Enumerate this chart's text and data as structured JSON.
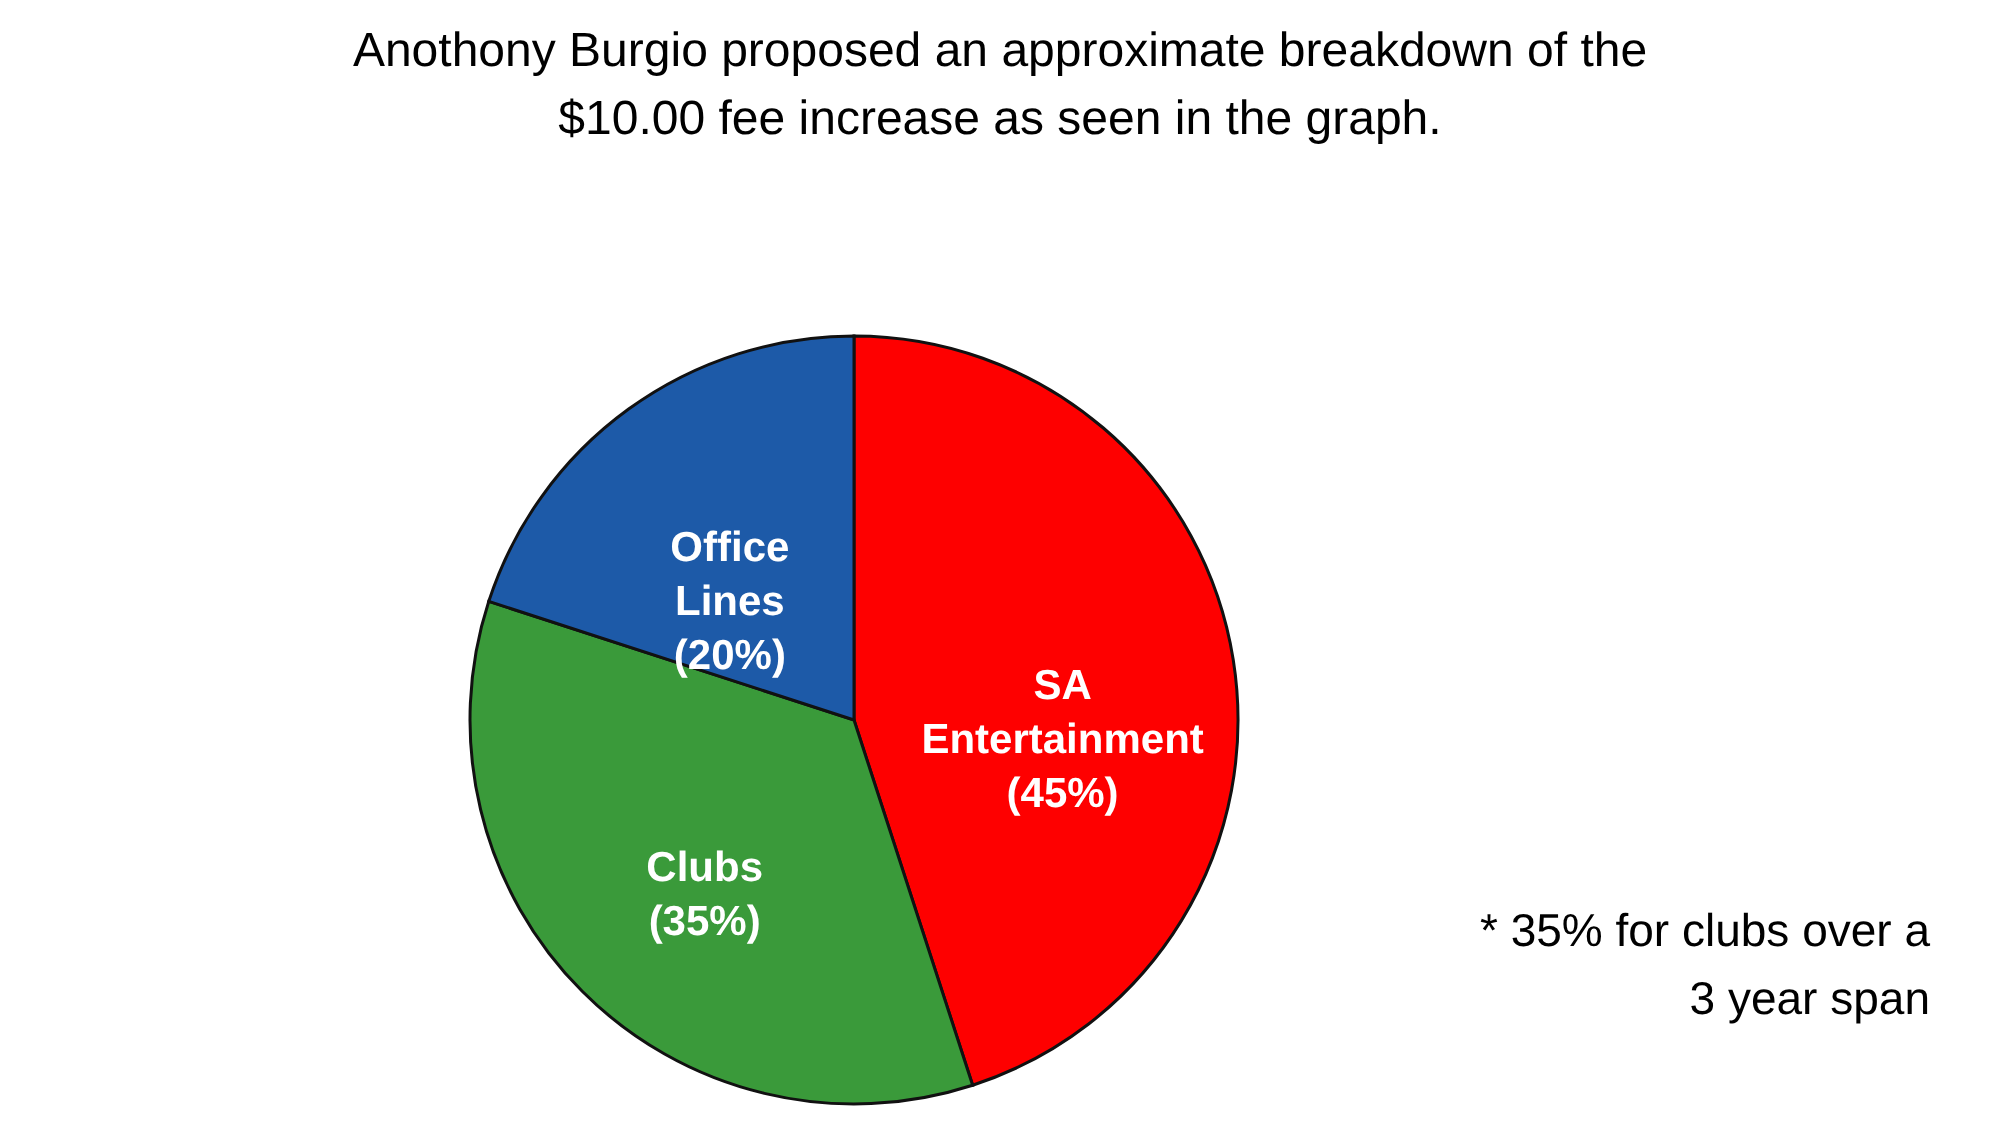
{
  "chart_data": {
    "type": "pie",
    "title": "Anothony Burgio proposed an approximate breakdown of the $10.00 fee increase as seen in the graph.",
    "categories": [
      "SA Entertainment",
      "Clubs",
      "Office Lines"
    ],
    "values": [
      45,
      35,
      20
    ],
    "value_labels": [
      "(45%)",
      "(35%)",
      "(20%)"
    ],
    "colors": [
      "#fe0000",
      "#3a9a3a",
      "#1d5aa8"
    ],
    "annotations": [
      "* 35% for clubs over a 3 year span"
    ]
  }
}
